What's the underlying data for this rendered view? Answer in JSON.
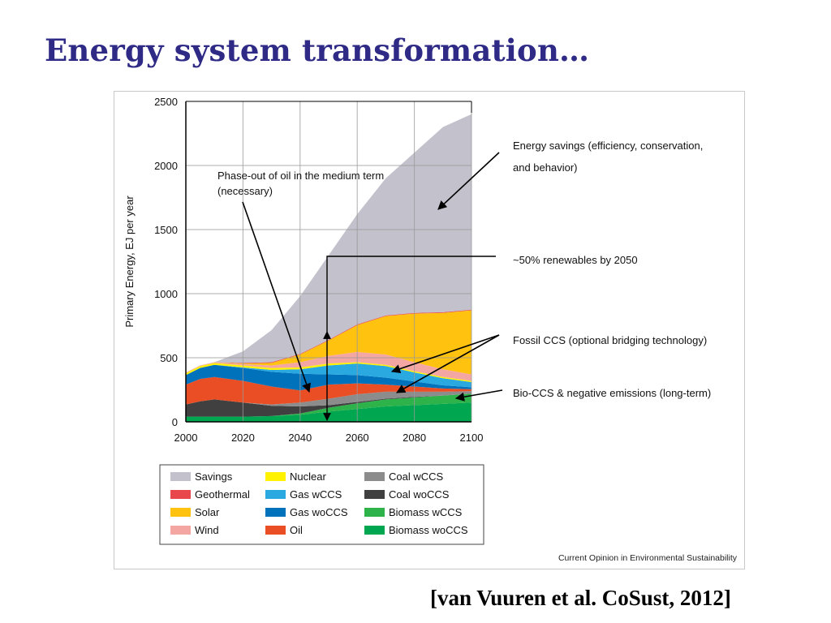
{
  "slide": {
    "title": "Energy system transformation…",
    "citation": "[van Vuuren et al. CoSust, 2012]",
    "journal_credit": "Current Opinion in Environmental Sustainability"
  },
  "chart_data": {
    "type": "area",
    "stacked": true,
    "title": "",
    "xlabel": "",
    "ylabel": "Primary Energy, EJ per year",
    "xlim": [
      2000,
      2100
    ],
    "ylim": [
      0,
      2500
    ],
    "xticks": [
      2000,
      2020,
      2040,
      2060,
      2080,
      2100
    ],
    "yticks": [
      0,
      500,
      1000,
      1500,
      2000,
      2500
    ],
    "grid": true,
    "legend_position": "bottom",
    "x": [
      2000,
      2005,
      2010,
      2020,
      2030,
      2040,
      2050,
      2060,
      2070,
      2080,
      2090,
      2100
    ],
    "series": [
      {
        "name": "Biomass woCCS",
        "color": "#00a650",
        "values": [
          40,
          40,
          40,
          40,
          45,
          55,
          80,
          100,
          120,
          130,
          140,
          150
        ]
      },
      {
        "name": "Biomass wCCS",
        "color": "#2db34a",
        "values": [
          0,
          0,
          0,
          0,
          0,
          10,
          30,
          45,
          55,
          60,
          65,
          70
        ]
      },
      {
        "name": "Coal woCCS",
        "color": "#404040",
        "values": [
          95,
          120,
          135,
          110,
          80,
          55,
          20,
          10,
          5,
          5,
          0,
          0
        ]
      },
      {
        "name": "Coal wCCS",
        "color": "#8c8c8c",
        "values": [
          0,
          0,
          0,
          0,
          10,
          30,
          50,
          60,
          55,
          40,
          30,
          20
        ]
      },
      {
        "name": "Oil",
        "color": "#e94e24",
        "values": [
          155,
          175,
          175,
          170,
          140,
          95,
          110,
          85,
          55,
          40,
          25,
          15
        ]
      },
      {
        "name": "Gas woCCS",
        "color": "#0072bc",
        "values": [
          75,
          85,
          95,
          100,
          115,
          130,
          80,
          65,
          55,
          40,
          25,
          15
        ]
      },
      {
        "name": "Gas wCCS",
        "color": "#29a9e0",
        "values": [
          0,
          0,
          0,
          5,
          15,
          35,
          70,
          90,
          90,
          70,
          55,
          40
        ]
      },
      {
        "name": "Nuclear",
        "color": "#fff200",
        "values": [
          15,
          15,
          15,
          15,
          15,
          15,
          15,
          10,
          10,
          10,
          10,
          10
        ]
      },
      {
        "name": "Wind",
        "color": "#f4a6a3",
        "values": [
          5,
          5,
          5,
          10,
          20,
          40,
          60,
          80,
          80,
          70,
          60,
          50
        ]
      },
      {
        "name": "Solar",
        "color": "#ffc20e",
        "values": [
          0,
          0,
          0,
          5,
          20,
          60,
          120,
          210,
          300,
          380,
          440,
          500
        ]
      },
      {
        "name": "Geothermal",
        "color": "#e8474c",
        "values": [
          0,
          0,
          0,
          5,
          5,
          5,
          5,
          5,
          5,
          5,
          5,
          5
        ]
      },
      {
        "name": "Savings",
        "color": "#c3c1cc",
        "values": [
          0,
          0,
          0,
          90,
          250,
          450,
          660,
          860,
          1070,
          1250,
          1445,
          1525
        ]
      }
    ],
    "legend_columns": [
      [
        "Savings",
        "Geothermal",
        "Solar",
        "Wind"
      ],
      [
        "Nuclear",
        "Gas wCCS",
        "Gas woCCS",
        "Oil"
      ],
      [
        "Coal wCCS",
        "Coal woCCS",
        "Biomass wCCS",
        "Biomass woCCS"
      ]
    ],
    "annotations": [
      {
        "id": "oil",
        "lines": [
          "Phase-out of oil in the medium term",
          "(necessary)"
        ]
      },
      {
        "id": "savings",
        "lines": [
          "Energy savings (efficiency, conservation,",
          "and behavior)"
        ]
      },
      {
        "id": "renewables",
        "lines": [
          "~50% renewables by 2050"
        ]
      },
      {
        "id": "fossil-ccs",
        "lines": [
          "Fossil CCS (optional bridging technology)"
        ]
      },
      {
        "id": "bioccs",
        "lines": [
          "Bio-CCS & negative emissions (long-term)"
        ]
      }
    ]
  }
}
